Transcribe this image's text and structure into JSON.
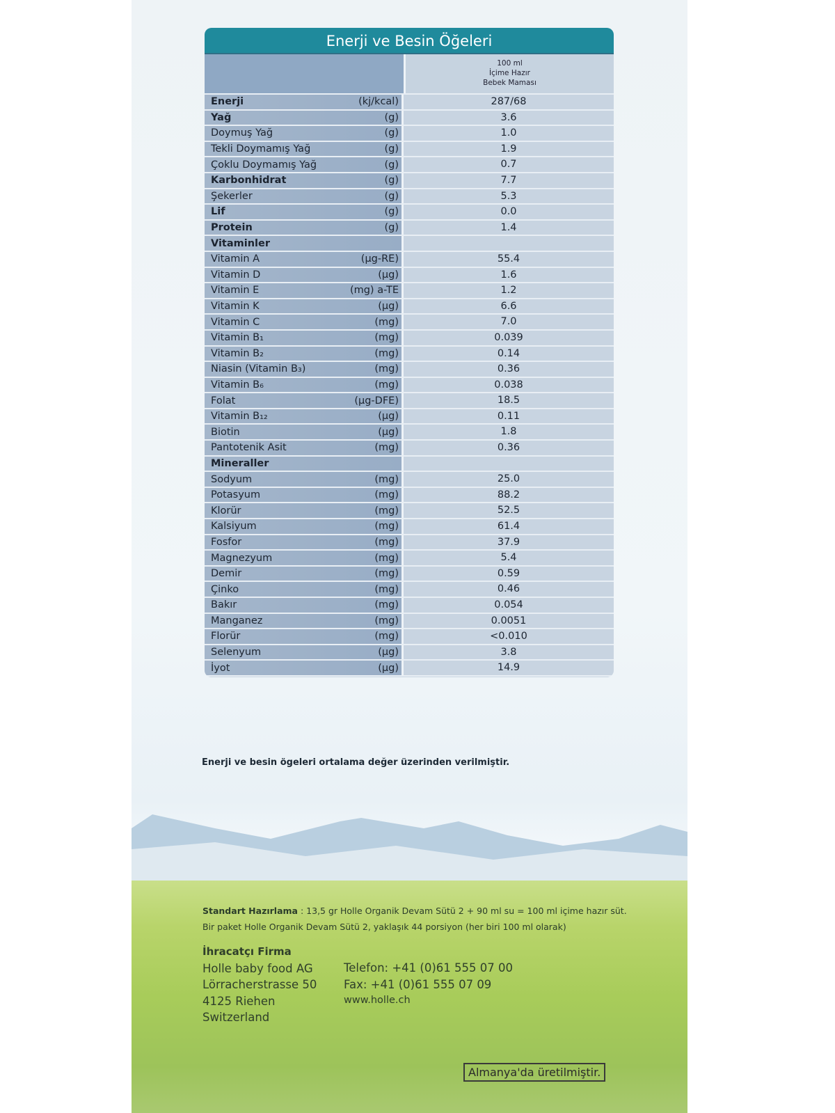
{
  "table": {
    "title": "Enerji ve Besin Öğeleri",
    "column_header": [
      "100 ml",
      "İçime Hazır",
      "Bebek Maması"
    ],
    "rows": [
      {
        "name": "Enerji",
        "unit": "(kj/kcal)",
        "value": "287/68",
        "bold": true
      },
      {
        "name": "Yağ",
        "unit": "(g)",
        "value": "3.6",
        "bold": true
      },
      {
        "name": "Doymuş Yağ",
        "unit": "(g)",
        "value": "1.0"
      },
      {
        "name": "Tekli Doymamış Yağ",
        "unit": "(g)",
        "value": "1.9"
      },
      {
        "name": "Çoklu Doymamış Yağ",
        "unit": "(g)",
        "value": "0.7"
      },
      {
        "name": "Karbonhidrat",
        "unit": "(g)",
        "value": "7.7",
        "bold": true
      },
      {
        "name": "Şekerler",
        "unit": "(g)",
        "value": "5.3"
      },
      {
        "name": "Lif",
        "unit": "(g)",
        "value": "0.0",
        "bold": true
      },
      {
        "name": "Protein",
        "unit": "(g)",
        "value": "1.4",
        "bold": true
      },
      {
        "name": "Vitaminler",
        "unit": "",
        "value": "",
        "bold": true
      },
      {
        "name": "Vitamin A",
        "unit": "(µg-RE)",
        "value": "55.4"
      },
      {
        "name": "Vitamin D",
        "unit": "(µg)",
        "value": "1.6"
      },
      {
        "name": "Vitamin E",
        "unit": "(mg) a-TE",
        "value": "1.2"
      },
      {
        "name": "Vitamin K",
        "unit": "(µg)",
        "value": "6.6"
      },
      {
        "name": "Vitamin C",
        "unit": "(mg)",
        "value": "7.0"
      },
      {
        "name": "Vitamin B₁",
        "unit": "(mg)",
        "value": "0.039"
      },
      {
        "name": "Vitamin B₂",
        "unit": "(mg)",
        "value": "0.14"
      },
      {
        "name": "Niasin (Vitamin B₃)",
        "unit": "(mg)",
        "value": "0.36"
      },
      {
        "name": "Vitamin B₆",
        "unit": "(mg)",
        "value": "0.038"
      },
      {
        "name": "Folat",
        "unit": "(µg-DFE)",
        "value": "18.5"
      },
      {
        "name": "Vitamin B₁₂",
        "unit": "(µg)",
        "value": "0.11"
      },
      {
        "name": "Biotin",
        "unit": "(µg)",
        "value": "1.8"
      },
      {
        "name": "Pantotenik Asit",
        "unit": "(mg)",
        "value": "0.36"
      },
      {
        "name": "Mineraller",
        "unit": "",
        "value": "",
        "bold": true
      },
      {
        "name": "Sodyum",
        "unit": "(mg)",
        "value": "25.0"
      },
      {
        "name": "Potasyum",
        "unit": "(mg)",
        "value": "88.2"
      },
      {
        "name": "Klorür",
        "unit": "(mg)",
        "value": "52.5"
      },
      {
        "name": "Kalsiyum",
        "unit": "(mg)",
        "value": "61.4"
      },
      {
        "name": "Fosfor",
        "unit": "(mg)",
        "value": "37.9"
      },
      {
        "name": "Magnezyum",
        "unit": "(mg)",
        "value": "5.4"
      },
      {
        "name": "Demir",
        "unit": "(mg)",
        "value": "0.59"
      },
      {
        "name": "Çinko",
        "unit": "(mg)",
        "value": "0.46"
      },
      {
        "name": "Bakır",
        "unit": "(mg)",
        "value": "0.054"
      },
      {
        "name": "Manganez",
        "unit": "(mg)",
        "value": "0.0051"
      },
      {
        "name": "Florür",
        "unit": "(mg)",
        "value": "<0.010"
      },
      {
        "name": "Selenyum",
        "unit": "(µg)",
        "value": "3.8"
      },
      {
        "name": "İyot",
        "unit": "(µg)",
        "value": "14.9"
      }
    ]
  },
  "note": "Enerji ve besin ögeleri ortalama değer üzerinden verilmiştir.",
  "preparation": {
    "label": "Standart Hazırlama",
    "text": " : 13,5 gr Holle Organik Devam Sütü 2 + 90 ml su = 100 ml içime hazır süt.",
    "line2": "Bir paket Holle Organik Devam Sütü 2, yaklaşık 44 porsiyon (her biri 100 ml olarak)"
  },
  "exporter": {
    "title": "İhracatçı Firma",
    "address": [
      "Holle baby food AG",
      "Lörracherstrasse 50",
      "4125 Riehen",
      "Switzerland"
    ],
    "contact": [
      "Telefon: +41 (0)61 555 07 00",
      "Fax: +41 (0)61 555 07 09",
      "www.holle.ch"
    ]
  },
  "made_in": "Almanya'da üretilmiştir.",
  "colors": {
    "header": "#1f8a9c",
    "label_col": "#9cb0c8",
    "value_col": "#c8d4e1",
    "meadow": "#a8cc5a"
  }
}
